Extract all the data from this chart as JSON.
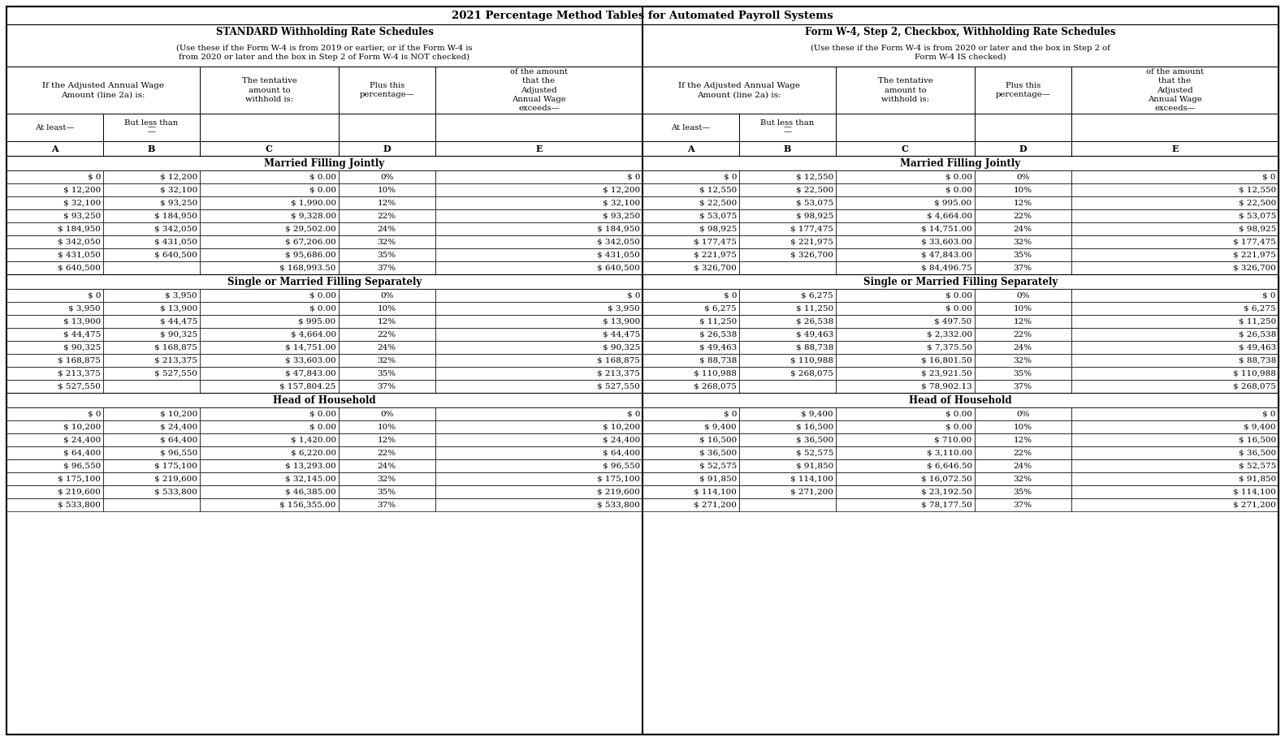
{
  "title": "2021 Percentage Method Tables for Automated Payroll Systems",
  "left_header1": "STANDARD Withholding Rate Schedules",
  "left_header2": "(Use these if the Form W-4 is from 2019 or earlier, or if the Form W-4 is\nfrom 2020 or later and the box in Step 2 of Form W-4 is NOT checked)",
  "left_header2_not": "NOT",
  "right_header1": "Form W-4, Step 2, Checkbox, Withholding Rate Schedules",
  "right_header2": "(Use these if the Form W-4 is from 2020 or later and the box in Step 2 of\nForm W-4 IS checked)",
  "right_header2_is": "IS",
  "sections_left": [
    {
      "name": "Married Filling Jointly",
      "rows": [
        [
          "$ 0",
          "$ 12,200",
          "$ 0.00",
          "0%",
          "$ 0"
        ],
        [
          "$ 12,200",
          "$ 32,100",
          "$ 0.00",
          "10%",
          "$ 12,200"
        ],
        [
          "$ 32,100",
          "$ 93,250",
          "$ 1,990.00",
          "12%",
          "$ 32,100"
        ],
        [
          "$ 93,250",
          "$ 184,950",
          "$ 9,328.00",
          "22%",
          "$ 93,250"
        ],
        [
          "$ 184,950",
          "$ 342,050",
          "$ 29,502.00",
          "24%",
          "$ 184,950"
        ],
        [
          "$ 342,050",
          "$ 431,050",
          "$ 67,206.00",
          "32%",
          "$ 342,050"
        ],
        [
          "$ 431,050",
          "$ 640,500",
          "$ 95,686.00",
          "35%",
          "$ 431,050"
        ],
        [
          "$ 640,500",
          "",
          "$ 168,993.50",
          "37%",
          "$ 640,500"
        ]
      ]
    },
    {
      "name": "Single or Married Filling Separately",
      "rows": [
        [
          "$ 0",
          "$ 3,950",
          "$ 0.00",
          "0%",
          "$ 0"
        ],
        [
          "$ 3,950",
          "$ 13,900",
          "$ 0.00",
          "10%",
          "$ 3,950"
        ],
        [
          "$ 13,900",
          "$ 44,475",
          "$ 995.00",
          "12%",
          "$ 13,900"
        ],
        [
          "$ 44,475",
          "$ 90,325",
          "$ 4,664.00",
          "22%",
          "$ 44,475"
        ],
        [
          "$ 90,325",
          "$ 168,875",
          "$ 14,751.00",
          "24%",
          "$ 90,325"
        ],
        [
          "$ 168,875",
          "$ 213,375",
          "$ 33,603.00",
          "32%",
          "$ 168,875"
        ],
        [
          "$ 213,375",
          "$ 527,550",
          "$ 47,843.00",
          "35%",
          "$ 213,375"
        ],
        [
          "$ 527,550",
          "",
          "$ 157,804.25",
          "37%",
          "$ 527,550"
        ]
      ]
    },
    {
      "name": "Head of Household",
      "rows": [
        [
          "$ 0",
          "$ 10,200",
          "$ 0.00",
          "0%",
          "$ 0"
        ],
        [
          "$ 10,200",
          "$ 24,400",
          "$ 0.00",
          "10%",
          "$ 10,200"
        ],
        [
          "$ 24,400",
          "$ 64,400",
          "$ 1,420.00",
          "12%",
          "$ 24,400"
        ],
        [
          "$ 64,400",
          "$ 96,550",
          "$ 6,220.00",
          "22%",
          "$ 64,400"
        ],
        [
          "$ 96,550",
          "$ 175,100",
          "$ 13,293.00",
          "24%",
          "$ 96,550"
        ],
        [
          "$ 175,100",
          "$ 219,600",
          "$ 32,145.00",
          "32%",
          "$ 175,100"
        ],
        [
          "$ 219,600",
          "$ 533,800",
          "$ 46,385.00",
          "35%",
          "$ 219,600"
        ],
        [
          "$ 533,800",
          "",
          "$ 156,355.00",
          "37%",
          "$ 533,800"
        ]
      ]
    }
  ],
  "sections_right": [
    {
      "name": "Married Filling Jointly",
      "rows": [
        [
          "$ 0",
          "$ 12,550",
          "$ 0.00",
          "0%",
          "$ 0"
        ],
        [
          "$ 12,550",
          "$ 22,500",
          "$ 0.00",
          "10%",
          "$ 12,550"
        ],
        [
          "$ 22,500",
          "$ 53,075",
          "$ 995.00",
          "12%",
          "$ 22,500"
        ],
        [
          "$ 53,075",
          "$ 98,925",
          "$ 4,664.00",
          "22%",
          "$ 53,075"
        ],
        [
          "$ 98,925",
          "$ 177,475",
          "$ 14,751.00",
          "24%",
          "$ 98,925"
        ],
        [
          "$ 177,475",
          "$ 221,975",
          "$ 33,603.00",
          "32%",
          "$ 177,475"
        ],
        [
          "$ 221,975",
          "$ 326,700",
          "$ 47,843.00",
          "35%",
          "$ 221,975"
        ],
        [
          "$ 326,700",
          "",
          "$ 84,496.75",
          "37%",
          "$ 326,700"
        ]
      ]
    },
    {
      "name": "Single or Married Filling Separately",
      "rows": [
        [
          "$ 0",
          "$ 6,275",
          "$ 0.00",
          "0%",
          "$ 0"
        ],
        [
          "$ 6,275",
          "$ 11,250",
          "$ 0.00",
          "10%",
          "$ 6,275"
        ],
        [
          "$ 11,250",
          "$ 26,538",
          "$ 497.50",
          "12%",
          "$ 11,250"
        ],
        [
          "$ 26,538",
          "$ 49,463",
          "$ 2,332.00",
          "22%",
          "$ 26,538"
        ],
        [
          "$ 49,463",
          "$ 88,738",
          "$ 7,375.50",
          "24%",
          "$ 49,463"
        ],
        [
          "$ 88,738",
          "$ 110,988",
          "$ 16,801.50",
          "32%",
          "$ 88,738"
        ],
        [
          "$ 110,988",
          "$ 268,075",
          "$ 23,921.50",
          "35%",
          "$ 110,988"
        ],
        [
          "$ 268,075",
          "",
          "$ 78,902.13",
          "37%",
          "$ 268,075"
        ]
      ]
    },
    {
      "name": "Head of Household",
      "rows": [
        [
          "$ 0",
          "$ 9,400",
          "$ 0.00",
          "0%",
          "$ 0"
        ],
        [
          "$ 9,400",
          "$ 16,500",
          "$ 0.00",
          "10%",
          "$ 9,400"
        ],
        [
          "$ 16,500",
          "$ 36,500",
          "$ 710.00",
          "12%",
          "$ 16,500"
        ],
        [
          "$ 36,500",
          "$ 52,575",
          "$ 3,110.00",
          "22%",
          "$ 36,500"
        ],
        [
          "$ 52,575",
          "$ 91,850",
          "$ 6,646.50",
          "24%",
          "$ 52,575"
        ],
        [
          "$ 91,850",
          "$ 114,100",
          "$ 16,072.50",
          "32%",
          "$ 91,850"
        ],
        [
          "$ 114,100",
          "$ 271,200",
          "$ 23,192.50",
          "35%",
          "$ 114,100"
        ],
        [
          "$ 271,200",
          "",
          "$ 78,177.50",
          "37%",
          "$ 271,200"
        ]
      ]
    }
  ]
}
